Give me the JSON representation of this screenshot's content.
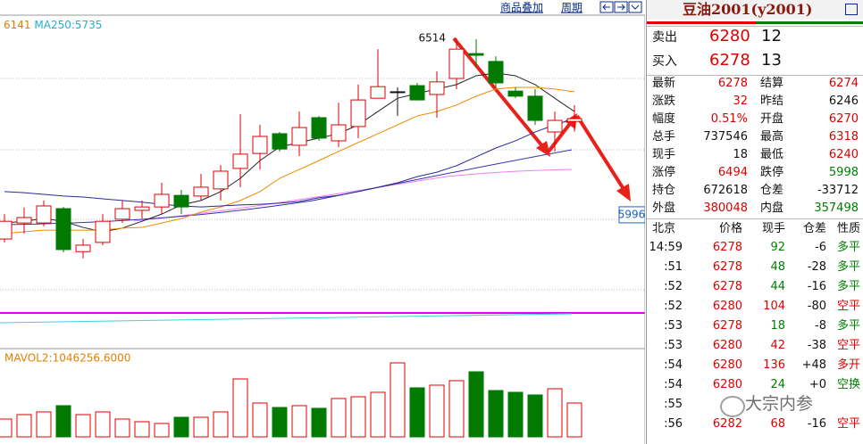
{
  "toolbar": {
    "overlay": "商品叠加",
    "period": "周期"
  },
  "chart": {
    "legend": [
      "6141",
      "MA250:5735"
    ],
    "ylim": [
      5606,
      6587
    ],
    "high_label": 6514,
    "cursor_label": 5996,
    "candles": {
      "open": [
        5925,
        5972,
        5972,
        6014,
        5888,
        5915,
        5983,
        6009,
        6019,
        6053,
        6051,
        6072,
        6132,
        6176,
        6234,
        6200,
        6281,
        6213,
        6255,
        6338,
        6357,
        6375,
        6349,
        6396,
        6469,
        6446,
        6359,
        6344,
        6239,
        6270
      ],
      "high": [
        5998,
        6017,
        6038,
        6019,
        5925,
        5998,
        6038,
        6038,
        6090,
        6069,
        6116,
        6142,
        6291,
        6260,
        6239,
        6299,
        6286,
        6325,
        6378,
        6482,
        6370,
        6383,
        6417,
        6514,
        6511,
        6461,
        6370,
        6365,
        6299,
        6318
      ],
      "low": [
        5915,
        5941,
        5962,
        5886,
        5868,
        5907,
        5972,
        5985,
        5998,
        5998,
        6038,
        6038,
        6077,
        6129,
        6182,
        6168,
        6213,
        6195,
        6221,
        6338,
        6286,
        6333,
        6281,
        6365,
        6430,
        6370,
        6338,
        6260,
        6182,
        6240
      ],
      "close": [
        5977,
        5988,
        6022,
        5894,
        5907,
        5977,
        6014,
        6019,
        6056,
        6019,
        6077,
        6124,
        6174,
        6226,
        6189,
        6252,
        6221,
        6260,
        6333,
        6372,
        6357,
        6333,
        6386,
        6482,
        6464,
        6383,
        6344,
        6273,
        6273,
        6278
      ]
    },
    "ma": [
      {
        "color": "#222222",
        "values": [
          5972,
          5977,
          5985,
          5977,
          5959,
          5946,
          5957,
          5977,
          5998,
          6025,
          6038,
          6064,
          6103,
          6155,
          6195,
          6208,
          6221,
          6234,
          6260,
          6299,
          6338,
          6352,
          6365,
          6378,
          6404,
          6412,
          6404,
          6378,
          6338,
          6299
        ]
      },
      {
        "color": "#f08c00",
        "values": [
          5941,
          5946,
          5951,
          5951,
          5951,
          5951,
          5957,
          5959,
          5972,
          5985,
          6004,
          6019,
          6038,
          6064,
          6103,
          6129,
          6155,
          6182,
          6208,
          6234,
          6260,
          6286,
          6299,
          6318,
          6344,
          6365,
          6370,
          6370,
          6365,
          6357
        ]
      },
      {
        "color": "#2a2a9a",
        "values": [
          6064,
          6061,
          6056,
          6051,
          6048,
          6043,
          6038,
          6033,
          6027,
          6022,
          6019,
          6022,
          6025,
          6027,
          6030,
          6035,
          6046,
          6053,
          6064,
          6077,
          6090,
          6108,
          6121,
          6140,
          6166,
          6192,
          6213,
          6239,
          6260,
          6278
        ]
      }
    ],
    "volume": {
      "legend": "MAVOL2:1046256.6000",
      "ylim": [
        0,
        2000000
      ],
      "values": [
        435000,
        543000,
        609000,
        761000,
        543000,
        609000,
        435000,
        370000,
        326000,
        478000,
        478000,
        609000,
        1413000,
        826000,
        717000,
        761000,
        696000,
        935000,
        978000,
        1087000,
        1804000,
        1196000,
        1261000,
        1370000,
        1587000,
        1130000,
        1087000,
        1022000,
        1174000,
        826000
      ]
    }
  },
  "quote": {
    "title": "豆油2001(y2001)",
    "ask": {
      "label": "卖出",
      "price": 6280,
      "volume": 12
    },
    "bid": {
      "label": "买入",
      "price": 6278,
      "volume": 13
    },
    "stats": [
      [
        "最新",
        6278,
        "结算",
        6274
      ],
      [
        "涨跌",
        32,
        "昨结",
        6246
      ],
      [
        "幅度",
        "0.51%",
        "开盘",
        6270
      ],
      [
        "总手",
        737546,
        "最高",
        6318
      ],
      [
        "现手",
        18,
        "最低",
        6240
      ],
      [
        "涨停",
        6494,
        "跌停",
        5998
      ],
      [
        "持仓",
        672618,
        "仓差",
        -33712
      ],
      [
        "外盘",
        380048,
        "内盘",
        357498
      ]
    ],
    "ticks": {
      "header": [
        "北京",
        "价格",
        "现手",
        "仓差",
        "性质"
      ],
      "rows": [
        [
          "14:59",
          6278,
          92,
          -6,
          "多平"
        ],
        [
          ":51",
          6278,
          48,
          -28,
          "多平"
        ],
        [
          ":52",
          6278,
          44,
          -16,
          "多平"
        ],
        [
          ":52",
          6280,
          104,
          -80,
          "空平"
        ],
        [
          ":53",
          6278,
          18,
          -8,
          "多平"
        ],
        [
          ":53",
          6280,
          42,
          -38,
          "空平"
        ],
        [
          ":54",
          6280,
          136,
          "+48",
          "多开"
        ],
        [
          ":54",
          6280,
          24,
          "+0",
          "空换"
        ],
        [
          ":55"
        ],
        [
          ":56",
          6282,
          68,
          -16,
          "空平"
        ]
      ]
    }
  },
  "watermark": "大宗内参"
}
